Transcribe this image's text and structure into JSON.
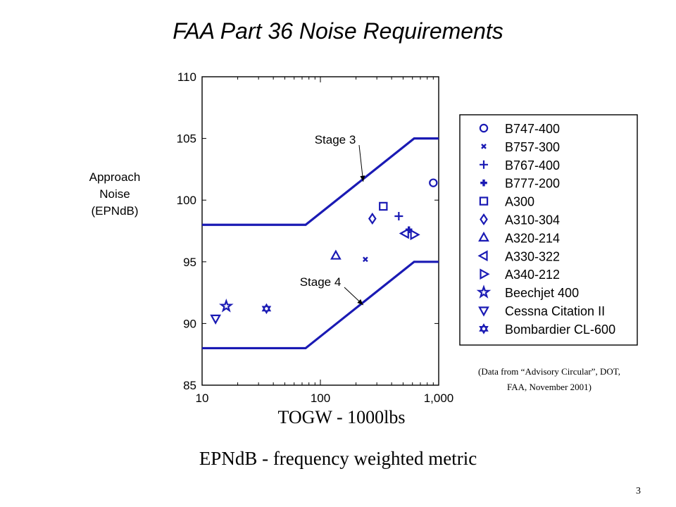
{
  "page": {
    "title": "FAA Part 36 Noise Requirements",
    "ylabel_lines": [
      "Approach",
      "Noise",
      "(EPNdB)"
    ],
    "xlabel": "TOGW - 1000lbs",
    "source_lines": [
      "(Data from “Advisory Circular”, DOT,",
      "FAA, November 2001)"
    ],
    "caption": "EPNdB - frequency weighted metric",
    "page_number": "3"
  },
  "chart_data": {
    "type": "scatter",
    "x_scale": "log",
    "xlim": [
      10,
      1000
    ],
    "ylim": [
      85,
      110
    ],
    "x_ticks": [
      {
        "value": 10,
        "label": "10"
      },
      {
        "value": 100,
        "label": "100"
      },
      {
        "value": 1000,
        "label": "1,000"
      }
    ],
    "y_ticks": [
      {
        "value": 85,
        "label": "85"
      },
      {
        "value": 90,
        "label": "90"
      },
      {
        "value": 95,
        "label": "95"
      },
      {
        "value": 100,
        "label": "100"
      },
      {
        "value": 105,
        "label": "105"
      },
      {
        "value": 110,
        "label": "110"
      }
    ],
    "grid": false,
    "legend_position": "right",
    "colors": {
      "series": "#1a1ab4",
      "axes": "#000000"
    },
    "limit_lines": [
      {
        "name": "Stage 3",
        "points": [
          [
            10,
            98
          ],
          [
            75,
            98
          ],
          [
            620,
            105
          ],
          [
            1000,
            105
          ]
        ]
      },
      {
        "name": "Stage 4",
        "points": [
          [
            10,
            88
          ],
          [
            75,
            88
          ],
          [
            620,
            95
          ],
          [
            1000,
            95
          ]
        ]
      }
    ],
    "annotations": [
      {
        "text": "Stage 3",
        "target": [
          230,
          101.5
        ]
      },
      {
        "text": "Stage 4",
        "target": [
          230,
          91.5
        ]
      }
    ],
    "series": [
      {
        "name": "B747-400",
        "marker": "circle",
        "x": 900,
        "y": 101.4
      },
      {
        "name": "B757-300",
        "marker": "x",
        "x": 240,
        "y": 95.2
      },
      {
        "name": "B767-400",
        "marker": "plus",
        "x": 460,
        "y": 98.7
      },
      {
        "name": "B777-200",
        "marker": "plus-bold",
        "x": 560,
        "y": 97.6
      },
      {
        "name": "A300",
        "marker": "square",
        "x": 340,
        "y": 99.5
      },
      {
        "name": "A310-304",
        "marker": "diamond",
        "x": 275,
        "y": 98.5
      },
      {
        "name": "A320-214",
        "marker": "triangle-up",
        "x": 135,
        "y": 95.5
      },
      {
        "name": "A330-322",
        "marker": "triangle-left",
        "x": 520,
        "y": 97.3
      },
      {
        "name": "A340-212",
        "marker": "triangle-right",
        "x": 620,
        "y": 97.2
      },
      {
        "name": "Beechjet 400",
        "marker": "star",
        "x": 16,
        "y": 91.4
      },
      {
        "name": "Cessna Citation II",
        "marker": "triangle-down",
        "x": 13,
        "y": 90.4
      },
      {
        "name": "Bombardier CL-600",
        "marker": "hexagram",
        "x": 35,
        "y": 91.2
      }
    ]
  }
}
